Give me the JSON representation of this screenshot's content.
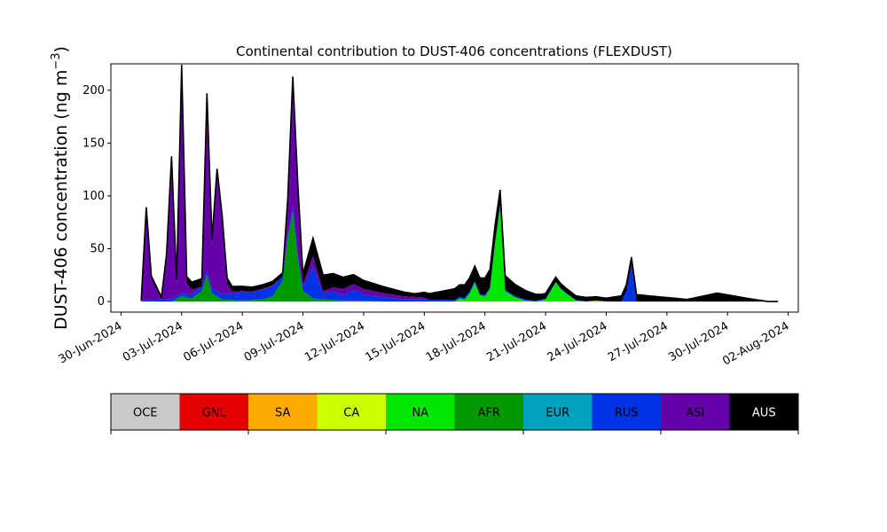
{
  "chart_data": {
    "type": "area",
    "stacked": true,
    "title": "Continental contribution to DUST-406 concentrations (FLEXDUST)",
    "ylabel_prefix": "DUST-406 concentration (ng m",
    "ylabel_exp": "−3",
    "ylabel_suffix": ")",
    "ylim": [
      -10,
      225
    ],
    "xlim": [
      "2024-06-29T12:00",
      "2024-08-02T12:00"
    ],
    "yticks": [
      "0",
      "50",
      "100",
      "150",
      "200"
    ],
    "xticks": [
      "30-Jun-2024",
      "03-Jul-2024",
      "06-Jul-2024",
      "09-Jul-2024",
      "12-Jul-2024",
      "15-Jul-2024",
      "18-Jul-2024",
      "21-Jul-2024",
      "24-Jul-2024",
      "27-Jul-2024",
      "30-Jul-2024",
      "02-Aug-2024"
    ],
    "grid": false,
    "legend": "colorbar-below",
    "categories": [
      "OCE",
      "GNL",
      "SA",
      "CA",
      "NA",
      "AFR",
      "EUR",
      "RUS",
      "ASI",
      "AUS"
    ],
    "colors": [
      "#c9c9c9",
      "#e60000",
      "#ffaa00",
      "#ccff00",
      "#00e600",
      "#009900",
      "#00a3bf",
      "#0033e6",
      "#6600a8",
      "#000000"
    ],
    "series": [
      {
        "name": "NA",
        "x": [
          "2024-07-16T12:00",
          "2024-07-16T18:00",
          "2024-07-17T00:00",
          "2024-07-17T06:00",
          "2024-07-17T12:00",
          "2024-07-17T18:00",
          "2024-07-18T00:00",
          "2024-07-18T06:00",
          "2024-07-18T12:00",
          "2024-07-18T18:00",
          "2024-07-19T00:00",
          "2024-07-19T12:00",
          "2024-07-20T00:00",
          "2024-07-20T12:00",
          "2024-07-21T00:00",
          "2024-07-21T06:00",
          "2024-07-21T12:00",
          "2024-07-21T18:00",
          "2024-07-22T00:00",
          "2024-07-22T12:00",
          "2024-07-23T00:00",
          "2024-07-23T12:00",
          "2024-07-24T00:00"
        ],
        "values": [
          0,
          3,
          2,
          8,
          18,
          6,
          5,
          12,
          55,
          90,
          10,
          4,
          1,
          0,
          2,
          10,
          18,
          12,
          8,
          1,
          0,
          1,
          0
        ]
      },
      {
        "name": "AFR",
        "x": [
          "2024-07-02T12:00",
          "2024-07-03T00:00",
          "2024-07-03T12:00",
          "2024-07-04T00:00",
          "2024-07-04T06:00",
          "2024-07-04T12:00",
          "2024-07-05T00:00",
          "2024-07-06T00:00",
          "2024-07-07T00:00",
          "2024-07-07T12:00",
          "2024-07-08T00:00",
          "2024-07-08T06:00",
          "2024-07-08T12:00",
          "2024-07-08T18:00",
          "2024-07-09T00:00",
          "2024-07-09T12:00",
          "2024-07-10T00:00",
          "2024-07-11T00:00",
          "2024-07-12T00:00",
          "2024-07-13T00:00",
          "2024-07-14T00:00"
        ],
        "values": [
          0,
          5,
          3,
          10,
          25,
          8,
          2,
          1,
          2,
          5,
          20,
          60,
          85,
          40,
          10,
          3,
          2,
          1,
          1,
          0,
          0
        ]
      },
      {
        "name": "RUS",
        "x": [
          "2024-07-01T00:00",
          "2024-07-02T00:00",
          "2024-07-03T00:00",
          "2024-07-04T00:00",
          "2024-07-05T00:00",
          "2024-07-05T12:00",
          "2024-07-06T00:00",
          "2024-07-06T12:00",
          "2024-07-07T00:00",
          "2024-07-07T12:00",
          "2024-07-08T00:00",
          "2024-07-08T12:00",
          "2024-07-09T00:00",
          "2024-07-09T12:00",
          "2024-07-10T00:00",
          "2024-07-10T12:00",
          "2024-07-11T00:00",
          "2024-07-11T12:00",
          "2024-07-12T00:00",
          "2024-07-13T00:00",
          "2024-07-14T00:00",
          "2024-07-24T18:00",
          "2024-07-25T00:00",
          "2024-07-25T06:00",
          "2024-07-25T12:00"
        ],
        "values": [
          1,
          2,
          3,
          4,
          5,
          6,
          8,
          7,
          9,
          10,
          4,
          5,
          4,
          30,
          6,
          8,
          5,
          10,
          6,
          4,
          2,
          0,
          10,
          35,
          0
        ]
      },
      {
        "name": "ASI",
        "x": [
          "2024-07-01T06:00",
          "2024-07-01T12:00",
          "2024-07-02T00:00",
          "2024-07-02T06:00",
          "2024-07-02T12:00",
          "2024-07-02T18:00",
          "2024-07-03T00:00",
          "2024-07-03T06:00",
          "2024-07-03T12:00",
          "2024-07-04T00:00",
          "2024-07-04T06:00",
          "2024-07-04T12:00",
          "2024-07-04T18:00",
          "2024-07-05T00:00",
          "2024-07-05T06:00",
          "2024-07-05T12:00",
          "2024-07-06T00:00",
          "2024-07-07T00:00",
          "2024-07-08T00:00",
          "2024-07-08T06:00",
          "2024-07-08T12:00",
          "2024-07-08T18:00",
          "2024-07-09T00:00",
          "2024-07-09T12:00",
          "2024-07-10T00:00",
          "2024-07-11T00:00",
          "2024-07-12T00:00",
          "2024-07-13T00:00",
          "2024-07-14T00:00",
          "2024-07-15T00:00"
        ],
        "values": [
          85,
          20,
          0,
          40,
          130,
          10,
          210,
          10,
          5,
          0,
          160,
          40,
          110,
          70,
          10,
          2,
          1,
          1,
          0,
          30,
          120,
          60,
          2,
          10,
          2,
          6,
          5,
          4,
          3,
          2
        ]
      },
      {
        "name": "AUS",
        "x": [
          "2024-07-01T06:00",
          "2024-07-02T06:00",
          "2024-07-02T12:00",
          "2024-07-03T00:00",
          "2024-07-04T06:00",
          "2024-07-04T18:00",
          "2024-07-05T00:00",
          "2024-07-08T12:00",
          "2024-07-09T12:00",
          "2024-07-11T12:00",
          "2024-07-14T12:00",
          "2024-07-18T06:00",
          "2024-07-20T18:00",
          "2024-07-24T00:00",
          "2024-07-25T06:00",
          "2024-07-28T00:00",
          "2024-07-29T12:00",
          "2024-07-31T00:00",
          "2024-08-01T00:00"
        ],
        "values": [
          3,
          2,
          5,
          6,
          8,
          6,
          5,
          3,
          17,
          9,
          3,
          17,
          5,
          3,
          7,
          2,
          8,
          3,
          0
        ]
      }
    ]
  }
}
